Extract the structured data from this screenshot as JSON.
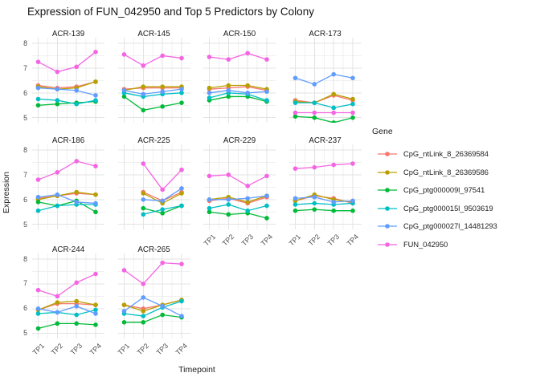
{
  "title": "Expression of FUN_042950 and Top 5 Predictors by Colony",
  "axes": {
    "x_title": "Timepoint",
    "y_title": "Expression",
    "x_ticks": [
      "TP1",
      "TP2",
      "TP3",
      "TP4"
    ],
    "y_ticks": [
      8,
      7,
      6,
      5
    ]
  },
  "legend": {
    "title": "Gene",
    "entries": [
      {
        "label": "CpG_ntLink_8_26369584",
        "color": "#F8766D"
      },
      {
        "label": "CpG_ntLink_8_26369586",
        "color": "#B79F00"
      },
      {
        "label": "CpG_ptg000009l_97541",
        "color": "#00BA38"
      },
      {
        "label": "CpG_ptg000015l_9503619",
        "color": "#00BFC4"
      },
      {
        "label": "CpG_ptg000027l_14481293",
        "color": "#619CFF"
      },
      {
        "label": "FUN_042950",
        "color": "#F564E3"
      }
    ]
  },
  "style": {
    "grid_major_color": "#e3e3e3",
    "grid_minor_color": "#f0f0f0",
    "panel_background": "#ffffff",
    "tick_text_color": "#4d4d4d"
  },
  "chart_data": {
    "type": "line",
    "facet_by": "Colony",
    "x": [
      "TP1",
      "TP2",
      "TP3",
      "TP4"
    ],
    "ylabel": "Expression",
    "xlabel": "Timepoint",
    "ylim": [
      4.8,
      8.25
    ],
    "y_major_gridlines": [
      5,
      6,
      7,
      8
    ],
    "y_minor_gridlines": [
      5.5,
      6.5,
      7.5
    ],
    "grid": true,
    "legend_position": "right",
    "series_names": [
      "CpG_ntLink_8_26369584",
      "CpG_ntLink_8_26369586",
      "CpG_ptg000009l_97541",
      "CpG_ptg000015l_9503619",
      "CpG_ptg000027l_14481293",
      "FUN_042950"
    ],
    "series_colors": [
      "#F8766D",
      "#B79F00",
      "#00BA38",
      "#00BFC4",
      "#619CFF",
      "#F564E3"
    ],
    "facets": [
      {
        "name": "ACR-139",
        "values": [
          [
            6.3,
            6.2,
            6.25,
            6.45
          ],
          [
            6.25,
            6.15,
            6.2,
            6.45
          ],
          [
            5.5,
            5.55,
            5.6,
            5.65
          ],
          [
            5.75,
            5.7,
            5.55,
            5.7
          ],
          [
            6.2,
            6.15,
            6.1,
            5.9
          ],
          [
            7.25,
            6.85,
            7.05,
            7.65
          ]
        ]
      },
      {
        "name": "ACR-145",
        "values": [
          [
            6.15,
            6.2,
            6.2,
            6.2
          ],
          [
            6.1,
            6.25,
            6.25,
            6.25
          ],
          [
            5.85,
            5.3,
            5.45,
            5.6
          ],
          [
            6.0,
            5.85,
            5.95,
            6.0
          ],
          [
            6.1,
            5.95,
            6.05,
            6.15
          ],
          [
            7.55,
            7.1,
            7.5,
            7.4
          ]
        ]
      },
      {
        "name": "ACR-150",
        "values": [
          [
            6.15,
            6.2,
            6.25,
            6.1
          ],
          [
            6.2,
            6.3,
            6.3,
            6.15
          ],
          [
            5.7,
            5.85,
            5.85,
            5.65
          ],
          [
            5.8,
            6.0,
            5.95,
            5.7
          ],
          [
            6.0,
            6.1,
            6.0,
            6.05
          ],
          [
            7.45,
            7.35,
            7.6,
            7.35
          ]
        ]
      },
      {
        "name": "ACR-173",
        "values": [
          [
            5.7,
            5.6,
            5.9,
            5.7
          ],
          [
            5.65,
            5.6,
            5.95,
            5.75
          ],
          [
            5.05,
            5.0,
            4.8,
            5.0
          ],
          [
            5.6,
            5.6,
            5.4,
            5.55
          ],
          [
            6.6,
            6.35,
            6.75,
            6.6
          ],
          [
            5.2,
            5.2,
            5.2,
            5.2
          ]
        ]
      },
      {
        "name": "ACR-186",
        "values": [
          [
            6.05,
            6.15,
            6.25,
            6.2
          ],
          [
            6.0,
            6.15,
            6.3,
            6.2
          ],
          [
            5.9,
            5.75,
            5.95,
            5.5
          ],
          [
            5.55,
            5.75,
            5.8,
            5.8
          ],
          [
            6.1,
            6.2,
            5.9,
            5.85
          ],
          [
            6.8,
            7.1,
            7.55,
            7.35
          ]
        ]
      },
      {
        "name": "ACR-225",
        "values": [
          [
            null,
            6.3,
            5.95,
            6.3
          ],
          [
            null,
            6.25,
            5.85,
            6.25
          ],
          [
            null,
            5.65,
            5.45,
            5.75
          ],
          [
            null,
            5.4,
            5.6,
            5.75
          ],
          [
            null,
            6.0,
            5.95,
            6.45
          ],
          [
            null,
            7.45,
            6.4,
            7.2
          ]
        ]
      },
      {
        "name": "ACR-229",
        "values": [
          [
            5.95,
            6.05,
            5.85,
            6.1
          ],
          [
            6.0,
            6.1,
            5.9,
            6.15
          ],
          [
            5.5,
            5.4,
            5.45,
            5.25
          ],
          [
            5.65,
            5.8,
            5.55,
            5.75
          ],
          [
            6.0,
            6.0,
            6.05,
            6.15
          ],
          [
            6.95,
            7.0,
            6.55,
            6.95
          ]
        ]
      },
      {
        "name": "ACR-237",
        "values": [
          [
            5.95,
            6.15,
            6.05,
            5.85
          ],
          [
            5.95,
            6.2,
            6.0,
            5.9
          ],
          [
            5.55,
            5.6,
            5.55,
            5.55
          ],
          [
            5.8,
            5.85,
            5.8,
            5.85
          ],
          [
            6.05,
            6.1,
            5.9,
            5.95
          ],
          [
            7.25,
            7.3,
            7.4,
            7.45
          ]
        ]
      },
      {
        "name": "ACR-244",
        "values": [
          [
            5.95,
            6.2,
            6.2,
            6.15
          ],
          [
            5.95,
            6.25,
            6.3,
            6.15
          ],
          [
            5.2,
            5.4,
            5.4,
            5.35
          ],
          [
            5.8,
            5.85,
            5.75,
            5.95
          ],
          [
            6.0,
            5.85,
            6.1,
            5.8
          ],
          [
            6.75,
            6.5,
            7.05,
            7.4
          ]
        ]
      },
      {
        "name": "ACR-265",
        "values": [
          [
            6.15,
            6.0,
            6.15,
            6.35
          ],
          [
            6.15,
            5.9,
            6.15,
            6.35
          ],
          [
            5.45,
            5.45,
            5.75,
            5.65
          ],
          [
            5.8,
            5.7,
            6.05,
            6.3
          ],
          [
            5.9,
            6.45,
            6.1,
            5.7
          ],
          [
            7.55,
            7.0,
            7.85,
            7.8
          ]
        ]
      }
    ]
  }
}
